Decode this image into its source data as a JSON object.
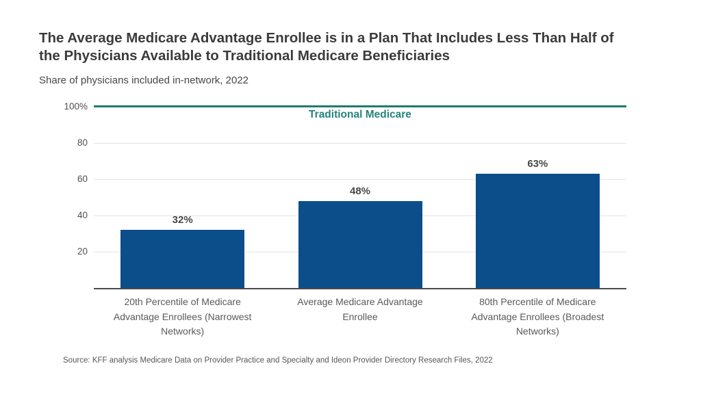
{
  "page": {
    "title": "The Average Medicare Advantage Enrollee is in a Plan That Includes Less Than Half of the Physicians Available to Traditional Medicare Beneficiaries",
    "title_lines": [
      "The Average Medicare Advantage Enrollee is in a Plan That Includes Less Than Half of",
      "the Physicians Available to Traditional Medicare Beneficiaries"
    ],
    "subtitle": "Share of physicians included in-network, 2022",
    "source": "Source: KFF analysis Medicare Data on Provider Practice and Specialty and Ideon Provider Directory Research Files, 2022"
  },
  "colors": {
    "bar": "#0b4e8a",
    "reference_line": "#20796d",
    "reference_label": "#26837a",
    "title_text": "#3b3b3b",
    "axis_text": "#4f4f4f",
    "category_text": "#595959",
    "gridline": "#e4e4e4",
    "axis_line": "#4a4a4a"
  },
  "chart_data": {
    "type": "bar",
    "title": "Share of physicians included in-network, 2022",
    "categories": [
      "20th Percentile of Medicare Advantage Enrollees (Narrowest Networks)",
      "Average Medicare Advantage Enrollee",
      "80th Percentile of Medicare Advantage Enrollees (Broadest Networks)"
    ],
    "values": [
      32,
      48,
      63
    ],
    "value_labels": [
      "32%",
      "48%",
      "63%"
    ],
    "xlabel": "",
    "ylabel": "",
    "ylim": [
      0,
      100
    ],
    "yticks": [
      {
        "label": "100%",
        "value": 100
      },
      {
        "label": "80",
        "value": 80
      },
      {
        "label": "60",
        "value": 60
      },
      {
        "label": "40",
        "value": 40
      },
      {
        "label": "20",
        "value": 20
      }
    ],
    "grid": true,
    "legend_position": "none",
    "reference_line": {
      "label": "Traditional Medicare",
      "value": 100
    }
  }
}
